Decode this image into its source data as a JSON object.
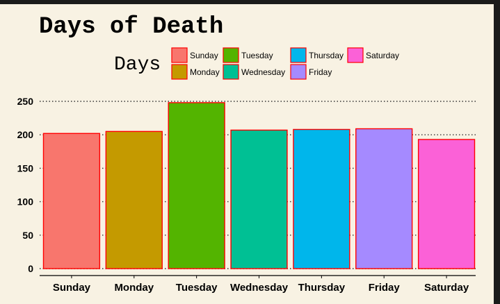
{
  "chart_data": {
    "type": "bar",
    "title": "Days of Death",
    "legend_title": "Days",
    "legend_position": "top",
    "categories": [
      "Sunday",
      "Monday",
      "Tuesday",
      "Wednesday",
      "Thursday",
      "Friday",
      "Saturday"
    ],
    "values": [
      202,
      205,
      248,
      207,
      208,
      209,
      193
    ],
    "colors": [
      "#f8766d",
      "#c49a00",
      "#53b400",
      "#00c094",
      "#00b6eb",
      "#a58aff",
      "#fb61d7"
    ],
    "bar_outline": "#ff0000",
    "legend_order": [
      "Sunday",
      "Tuesday",
      "Thursday",
      "Saturday",
      "Monday",
      "Wednesday",
      "Friday"
    ],
    "yticks": [
      0,
      50,
      100,
      150,
      200,
      250
    ],
    "ylim": [
      0,
      255
    ],
    "xlabel": "",
    "ylabel": "",
    "grid": "horizontal dotted"
  }
}
